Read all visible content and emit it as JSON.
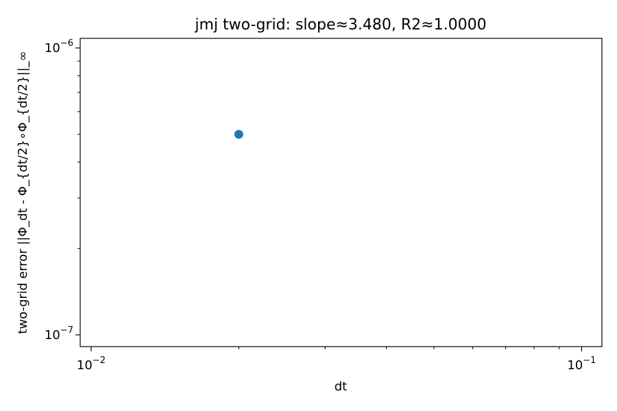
{
  "chart_data": {
    "type": "scatter",
    "title": "jmj two-grid: slope≈3.480, R2≈1.0000",
    "xlabel": "dt",
    "ylabel": "two-grid error ||Φ_dt - Φ_{dt/2}∘Φ_{dt/2}||_∞",
    "xscale": "log",
    "yscale": "log",
    "xlim": [
      0.0095,
      0.11
    ],
    "ylim": [
      9.1e-08,
      1.08e-06
    ],
    "grid": false,
    "x_major_ticks": [
      {
        "value": 0.01,
        "base": "10",
        "exp": "−2"
      },
      {
        "value": 0.1,
        "base": "10",
        "exp": "−1"
      }
    ],
    "y_major_ticks": [
      {
        "value": 1e-07,
        "base": "10",
        "exp": "−7"
      },
      {
        "value": 1e-06,
        "base": "10",
        "exp": "−6"
      }
    ],
    "x_minor_ticks": [
      0.02,
      0.03,
      0.04,
      0.05,
      0.06,
      0.07,
      0.08,
      0.09
    ],
    "y_minor_ticks": [
      2e-07,
      3e-07,
      4e-07,
      5e-07,
      6e-07,
      7e-07,
      8e-07,
      9e-07
    ],
    "series": [
      {
        "color": "#1f77b4",
        "points": [
          {
            "x": 0.02,
            "y": 5e-07
          }
        ]
      }
    ]
  }
}
